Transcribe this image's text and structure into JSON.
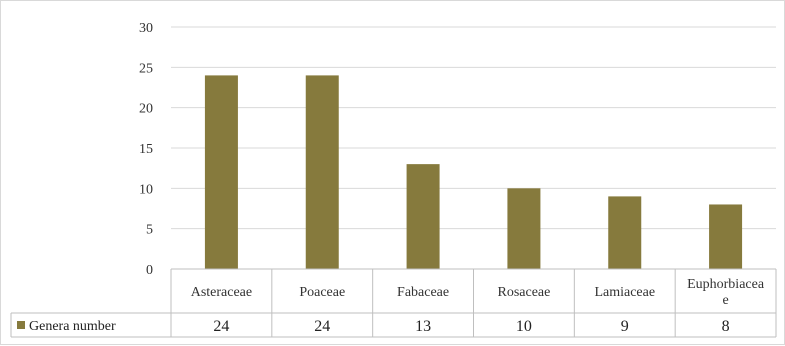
{
  "chart_data": {
    "type": "bar",
    "categories": [
      "Asteraceae",
      "Poaceae",
      "Fabaceae",
      "Rosaceae",
      "Lamiaceae",
      "Euphorbiaceae"
    ],
    "category_display_lines": [
      [
        "Asteraceae"
      ],
      [
        "Poaceae"
      ],
      [
        "Fabaceae"
      ],
      [
        "Rosaceae"
      ],
      [
        "Lamiaceae"
      ],
      [
        "Euphorbiacea",
        "e"
      ]
    ],
    "series": [
      {
        "name": "Genera number",
        "values": [
          24,
          24,
          13,
          10,
          9,
          8
        ]
      }
    ],
    "table_values": [
      "24",
      "24",
      "13",
      "10",
      "9",
      "8"
    ],
    "ylim": [
      0,
      30
    ],
    "yticks": [
      0,
      5,
      10,
      15,
      20,
      25,
      30
    ],
    "ytick_labels": [
      "0",
      "5",
      "10",
      "15",
      "20",
      "25",
      "30"
    ],
    "grid": true,
    "legend_placement": "bottom-left data table",
    "colors": {
      "bar": "#867a3d",
      "gridline": "#d9d9d9",
      "border": "#bfbfbf"
    }
  }
}
